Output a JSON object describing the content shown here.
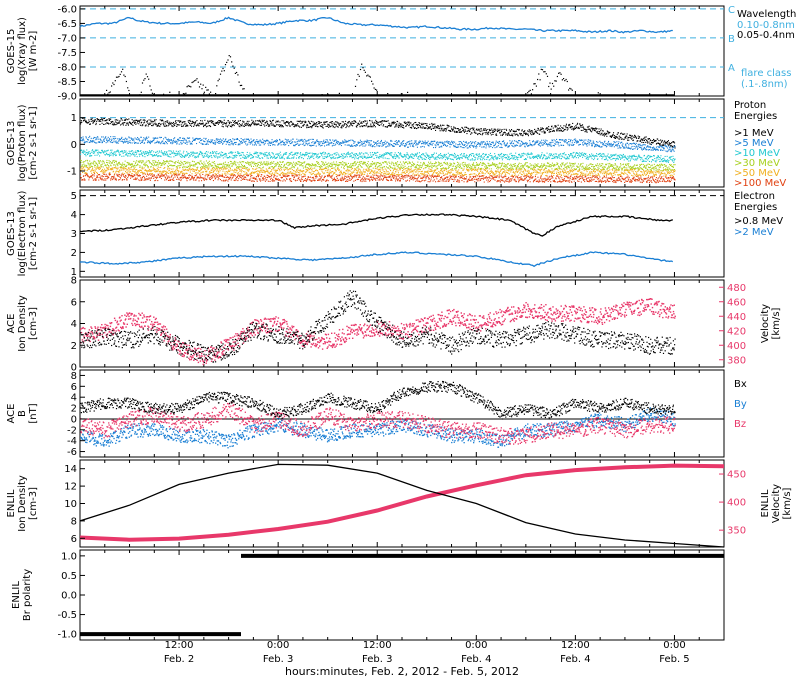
{
  "colors": {
    "black": "#000000",
    "xray_long": "#1a7fd4",
    "cyan": "#3fb0e0",
    "pink": "#e8386a",
    "proton": [
      "#000000",
      "#1a7fd4",
      "#20c8d0",
      "#a8d020",
      "#f0b020",
      "#e04010"
    ]
  },
  "footer": {
    "time_axis_title": "hours:minutes, Feb. 2, 2012 - Feb. 5, 2012",
    "ticks": [
      {
        "t": 12,
        "time": "12:00",
        "date": "Feb. 2"
      },
      {
        "t": 24,
        "time": "0:00",
        "date": "Feb. 3"
      },
      {
        "t": 36,
        "time": "12:00",
        "date": "Feb. 3"
      },
      {
        "t": 48,
        "time": "0:00",
        "date": "Feb. 4"
      },
      {
        "t": 60,
        "time": "12:00",
        "date": "Feb. 4"
      },
      {
        "t": 72,
        "time": "0:00",
        "date": "Feb. 5"
      }
    ]
  },
  "chart_data": [
    {
      "type": "line",
      "panel": "goes15_xray",
      "ylabel": [
        "GOES-15",
        "log(Xray flux)",
        "[W m-2]"
      ],
      "yticks": [
        "-6.0",
        "-6.5",
        "-7.0",
        "-7.5",
        "-8.0",
        "-8.5",
        "-9.0"
      ],
      "ylim": [
        -9.0,
        -5.9
      ],
      "flare_class_letters": [
        "C",
        "B",
        "A"
      ],
      "flare_class_levels": [
        -6.0,
        -7.0,
        -8.0
      ],
      "legend": {
        "title": "Wavelength",
        "entries": [
          "0.10-0.8nm",
          "0.05-0.4nm"
        ],
        "note": [
          "flare class",
          "(.1-.8nm)"
        ]
      },
      "series": [
        {
          "x": [
            0,
            2,
            4,
            6,
            7,
            8,
            10,
            12,
            14,
            16,
            18,
            20,
            22,
            24,
            26,
            28,
            30,
            32,
            34,
            36,
            38,
            40,
            42,
            44,
            46,
            48,
            50,
            52,
            54,
            56,
            58,
            60,
            62,
            64,
            66,
            68,
            70,
            72
          ],
          "values": [
            -6.6,
            -6.5,
            -6.5,
            -6.3,
            -6.4,
            -6.45,
            -6.5,
            -6.5,
            -6.45,
            -6.5,
            -6.3,
            -6.5,
            -6.55,
            -6.5,
            -6.4,
            -6.4,
            -6.3,
            -6.5,
            -6.55,
            -6.55,
            -6.6,
            -6.65,
            -6.6,
            -6.65,
            -6.7,
            -6.7,
            -6.65,
            -6.7,
            -6.7,
            -6.75,
            -6.75,
            -6.75,
            -6.8,
            -6.75,
            -6.8,
            -6.75,
            -6.8,
            -6.75
          ]
        },
        {
          "x": [
            0,
            3,
            5,
            6,
            7,
            8,
            9,
            10,
            12,
            14,
            16,
            18,
            20,
            22,
            24,
            26,
            28,
            30,
            32,
            33,
            34,
            35,
            36,
            38,
            40,
            42,
            44,
            46,
            48,
            50,
            52,
            54,
            55,
            56,
            57,
            58,
            59,
            60,
            61,
            62,
            64,
            66,
            68,
            70,
            72
          ],
          "values": [
            -9.0,
            -9.0,
            -8.0,
            -9.0,
            -9.0,
            -8.2,
            -9.0,
            -9.0,
            -9.0,
            -8.5,
            -9.0,
            -7.6,
            -9.0,
            -9.0,
            -9.0,
            -9.0,
            -9.0,
            -9.0,
            -9.0,
            -9.0,
            -7.9,
            -8.3,
            -9.0,
            -9.0,
            -9.0,
            -9.0,
            -9.0,
            -9.0,
            -9.0,
            -9.0,
            -9.0,
            -9.0,
            -8.6,
            -8.1,
            -8.7,
            -8.1,
            -8.6,
            -9.0,
            -9.0,
            -9.0,
            -9.0,
            -9.0,
            -9.0,
            -9.0,
            -9.0
          ]
        }
      ]
    },
    {
      "type": "scatter",
      "panel": "goes13_proton",
      "ylabel": [
        "GOES-13",
        "log(Proton flux)",
        "[cm-2 s-1 sr-1]"
      ],
      "yticks": [
        "1",
        "0",
        "-1"
      ],
      "ylim": [
        -1.6,
        1.7
      ],
      "reference_level": 1.0,
      "legend": {
        "title": [
          "Proton",
          "Energies"
        ],
        "entries": [
          ">1 MeV",
          ">5 MeV",
          ">10 MeV",
          ">30 MeV",
          ">50 MeV",
          ">100 MeV"
        ]
      },
      "series": [
        {
          "x": [
            0,
            6,
            12,
            18,
            24,
            30,
            36,
            42,
            48,
            54,
            60,
            64,
            66,
            72
          ],
          "values": [
            0.9,
            0.85,
            0.8,
            0.8,
            0.8,
            0.75,
            0.8,
            0.7,
            0.5,
            0.45,
            0.7,
            0.4,
            0.3,
            0.0
          ]
        },
        {
          "x": [
            0,
            12,
            24,
            36,
            48,
            60,
            72
          ],
          "values": [
            0.2,
            0.15,
            0.1,
            0.05,
            0.0,
            0.1,
            -0.15
          ]
        },
        {
          "x": [
            0,
            12,
            24,
            36,
            48,
            60,
            72
          ],
          "values": [
            -0.3,
            -0.35,
            -0.4,
            -0.4,
            -0.45,
            -0.4,
            -0.55
          ]
        },
        {
          "x": [
            0,
            12,
            24,
            36,
            48,
            60,
            72
          ],
          "values": [
            -0.7,
            -0.72,
            -0.75,
            -0.75,
            -0.78,
            -0.8,
            -0.85
          ]
        },
        {
          "x": [
            0,
            12,
            24,
            36,
            48,
            60,
            72
          ],
          "values": [
            -0.95,
            -0.97,
            -1.0,
            -1.0,
            -1.02,
            -1.03,
            -1.05
          ]
        },
        {
          "x": [
            0,
            12,
            24,
            36,
            48,
            60,
            72
          ],
          "values": [
            -1.2,
            -1.22,
            -1.25,
            -1.25,
            -1.27,
            -1.28,
            -1.3
          ]
        }
      ]
    },
    {
      "type": "line",
      "panel": "goes13_electron",
      "ylabel": [
        "GOES-13",
        "log(Electron flux)",
        "[cm-2 s-1 sr-1]"
      ],
      "yticks": [
        "5",
        "4",
        "3",
        "2",
        "1"
      ],
      "ylim": [
        0.7,
        5.3
      ],
      "reference_level": 5.0,
      "legend": {
        "title": [
          "Electron",
          "Energies"
        ],
        "entries": [
          ">0.8 MeV",
          ">2 MeV"
        ]
      },
      "series": [
        {
          "x": [
            0,
            4,
            8,
            12,
            16,
            20,
            24,
            26,
            28,
            32,
            36,
            40,
            44,
            48,
            52,
            55,
            56,
            58,
            62,
            66,
            70,
            72
          ],
          "values": [
            3.1,
            3.2,
            3.4,
            3.6,
            3.7,
            3.7,
            3.7,
            3.3,
            3.4,
            3.5,
            3.8,
            4.0,
            4.0,
            3.9,
            3.7,
            3.0,
            2.9,
            3.4,
            3.9,
            3.9,
            3.7,
            3.7
          ]
        },
        {
          "x": [
            0,
            4,
            8,
            12,
            16,
            20,
            24,
            28,
            32,
            36,
            40,
            44,
            48,
            52,
            55,
            58,
            62,
            66,
            70,
            72
          ],
          "values": [
            1.5,
            1.4,
            1.5,
            1.7,
            1.8,
            1.8,
            1.7,
            1.6,
            1.7,
            1.9,
            2.0,
            1.9,
            1.8,
            1.5,
            1.3,
            1.7,
            2.0,
            1.9,
            1.6,
            1.5
          ]
        }
      ]
    },
    {
      "type": "scatter",
      "panel": "ace_plasma",
      "ylabel_left": [
        "ACE",
        "Ion Density",
        "[cm-3]"
      ],
      "ylabel_right": [
        "Velocity",
        "[km/s]"
      ],
      "yticks_left": [
        "8",
        "6",
        "4",
        "2",
        "0"
      ],
      "yticks_right": [
        "480",
        "460",
        "440",
        "420",
        "400",
        "380"
      ],
      "ylim_left": [
        0,
        8
      ],
      "ylim_right": [
        370,
        490
      ],
      "series": [
        {
          "name": "density",
          "x": [
            0,
            3,
            6,
            9,
            12,
            15,
            18,
            21,
            24,
            27,
            30,
            33,
            36,
            39,
            42,
            45,
            48,
            51,
            54,
            57,
            60,
            63,
            66,
            69,
            72
          ],
          "values": [
            2.5,
            2.8,
            2.5,
            3.0,
            2.0,
            1.2,
            1.5,
            3.5,
            3.0,
            2.5,
            4.5,
            6.5,
            4.0,
            2.5,
            3.0,
            2.0,
            3.0,
            2.5,
            3.0,
            3.5,
            3.0,
            2.5,
            2.5,
            2.0,
            2.0
          ]
        },
        {
          "name": "velocity",
          "x": [
            0,
            3,
            6,
            9,
            12,
            15,
            18,
            21,
            24,
            27,
            30,
            33,
            36,
            39,
            42,
            45,
            48,
            51,
            54,
            57,
            60,
            63,
            66,
            69,
            72
          ],
          "values": [
            415,
            420,
            440,
            430,
            395,
            385,
            400,
            425,
            430,
            410,
            405,
            420,
            425,
            420,
            430,
            440,
            430,
            440,
            450,
            445,
            445,
            440,
            450,
            455,
            445
          ]
        }
      ]
    },
    {
      "type": "scatter",
      "panel": "ace_field",
      "ylabel": [
        "ACE",
        "B",
        "[nT]"
      ],
      "yticks": [
        "8",
        "6",
        "4",
        "2",
        "0",
        "-2",
        "-4",
        "-6"
      ],
      "ylim": [
        -7,
        9
      ],
      "legend": {
        "entries": [
          "Bx",
          "By",
          "Bz"
        ]
      },
      "series": [
        {
          "name": "Bx",
          "x": [
            0,
            3,
            6,
            9,
            12,
            15,
            18,
            21,
            24,
            27,
            30,
            33,
            36,
            39,
            42,
            45,
            48,
            51,
            54,
            57,
            60,
            63,
            66,
            69,
            72
          ],
          "values": [
            2,
            3,
            3,
            2,
            2,
            4,
            4,
            3,
            1,
            2,
            4,
            3,
            2,
            5,
            6,
            6,
            4,
            1,
            2,
            1,
            3,
            2,
            3,
            2,
            2
          ]
        },
        {
          "name": "By",
          "x": [
            0,
            3,
            6,
            9,
            12,
            15,
            18,
            21,
            24,
            27,
            30,
            33,
            36,
            39,
            42,
            45,
            48,
            51,
            54,
            57,
            60,
            63,
            66,
            69,
            72
          ],
          "values": [
            -3,
            -4,
            -2,
            -2,
            -3,
            -3,
            -4,
            -2,
            -1,
            -2,
            -3,
            -2,
            -2,
            -1,
            -2,
            -3,
            -3,
            -4,
            -2,
            -2,
            -1,
            0,
            -1,
            1,
            0
          ]
        },
        {
          "name": "Bz",
          "x": [
            0,
            3,
            6,
            9,
            12,
            15,
            18,
            21,
            24,
            27,
            30,
            33,
            36,
            39,
            42,
            45,
            48,
            51,
            54,
            57,
            60,
            63,
            66,
            69,
            72
          ],
          "values": [
            -1,
            -2,
            0,
            1,
            -1,
            0,
            2,
            -1,
            0,
            -2,
            1,
            -1,
            0,
            0,
            -1,
            -2,
            -2,
            -3,
            -3,
            -2,
            -2,
            -1,
            -2,
            -1,
            -1
          ]
        }
      ]
    },
    {
      "type": "line",
      "panel": "enlil_plasma",
      "ylabel_left": [
        "ENLIL",
        "Ion Density",
        "[cm-3]"
      ],
      "ylabel_right": [
        "ENLIL",
        "Velocity",
        "[km/s]"
      ],
      "yticks_left": [
        "14",
        "12",
        "10",
        "8",
        "6"
      ],
      "yticks_right": [
        "450",
        "400",
        "350"
      ],
      "ylim_left": [
        5,
        15
      ],
      "ylim_right": [
        320,
        475
      ],
      "series": [
        {
          "name": "density",
          "x": [
            0,
            6,
            12,
            18,
            24,
            30,
            36,
            42,
            48,
            54,
            60,
            66,
            72,
            78
          ],
          "values": [
            8.0,
            9.8,
            12.2,
            13.5,
            14.5,
            14.4,
            13.5,
            11.5,
            10.0,
            7.8,
            6.5,
            5.8,
            5.4,
            5.0
          ]
        },
        {
          "name": "velocity",
          "x": [
            0,
            6,
            12,
            18,
            24,
            30,
            36,
            42,
            48,
            54,
            60,
            66,
            72,
            78
          ],
          "values": [
            337,
            333,
            335,
            342,
            352,
            365,
            385,
            410,
            430,
            448,
            457,
            462,
            465,
            464
          ]
        }
      ]
    },
    {
      "type": "line",
      "panel": "enlil_polarity",
      "ylabel": [
        "ENLIL",
        "Br polarity"
      ],
      "yticks": [
        "1.0",
        "0.5",
        "0.0",
        "-0.5",
        "-1.0"
      ],
      "ylim": [
        -1.15,
        1.15
      ],
      "series": [
        {
          "x": [
            0,
            19.5,
            19.5,
            78
          ],
          "values": [
            -1,
            -1,
            1,
            1
          ]
        }
      ]
    }
  ]
}
